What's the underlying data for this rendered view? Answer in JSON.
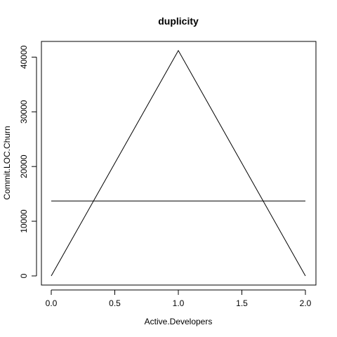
{
  "chart_data": {
    "type": "line",
    "title": "duplicity",
    "xlabel": "Active.Developers",
    "ylabel": "Commit.LOC.Churn",
    "xlim": [
      0.0,
      2.0
    ],
    "ylim": [
      0,
      41200
    ],
    "xticks": [
      0.0,
      0.5,
      1.0,
      1.5,
      2.0
    ],
    "xtick_labels": [
      "0.0",
      "0.5",
      "1.0",
      "1.5",
      "2.0"
    ],
    "yticks": [
      0,
      10000,
      20000,
      30000,
      40000
    ],
    "ytick_labels": [
      "0",
      "10000",
      "20000",
      "30000",
      "40000"
    ],
    "grid": false,
    "legend": "none",
    "series": [
      {
        "x": [
          0.0,
          1.0,
          2.0
        ],
        "y": [
          0,
          41200,
          0
        ]
      },
      {
        "x": [
          0.0,
          2.0
        ],
        "y": [
          13700,
          13700
        ]
      }
    ],
    "line_color": "#000000"
  }
}
